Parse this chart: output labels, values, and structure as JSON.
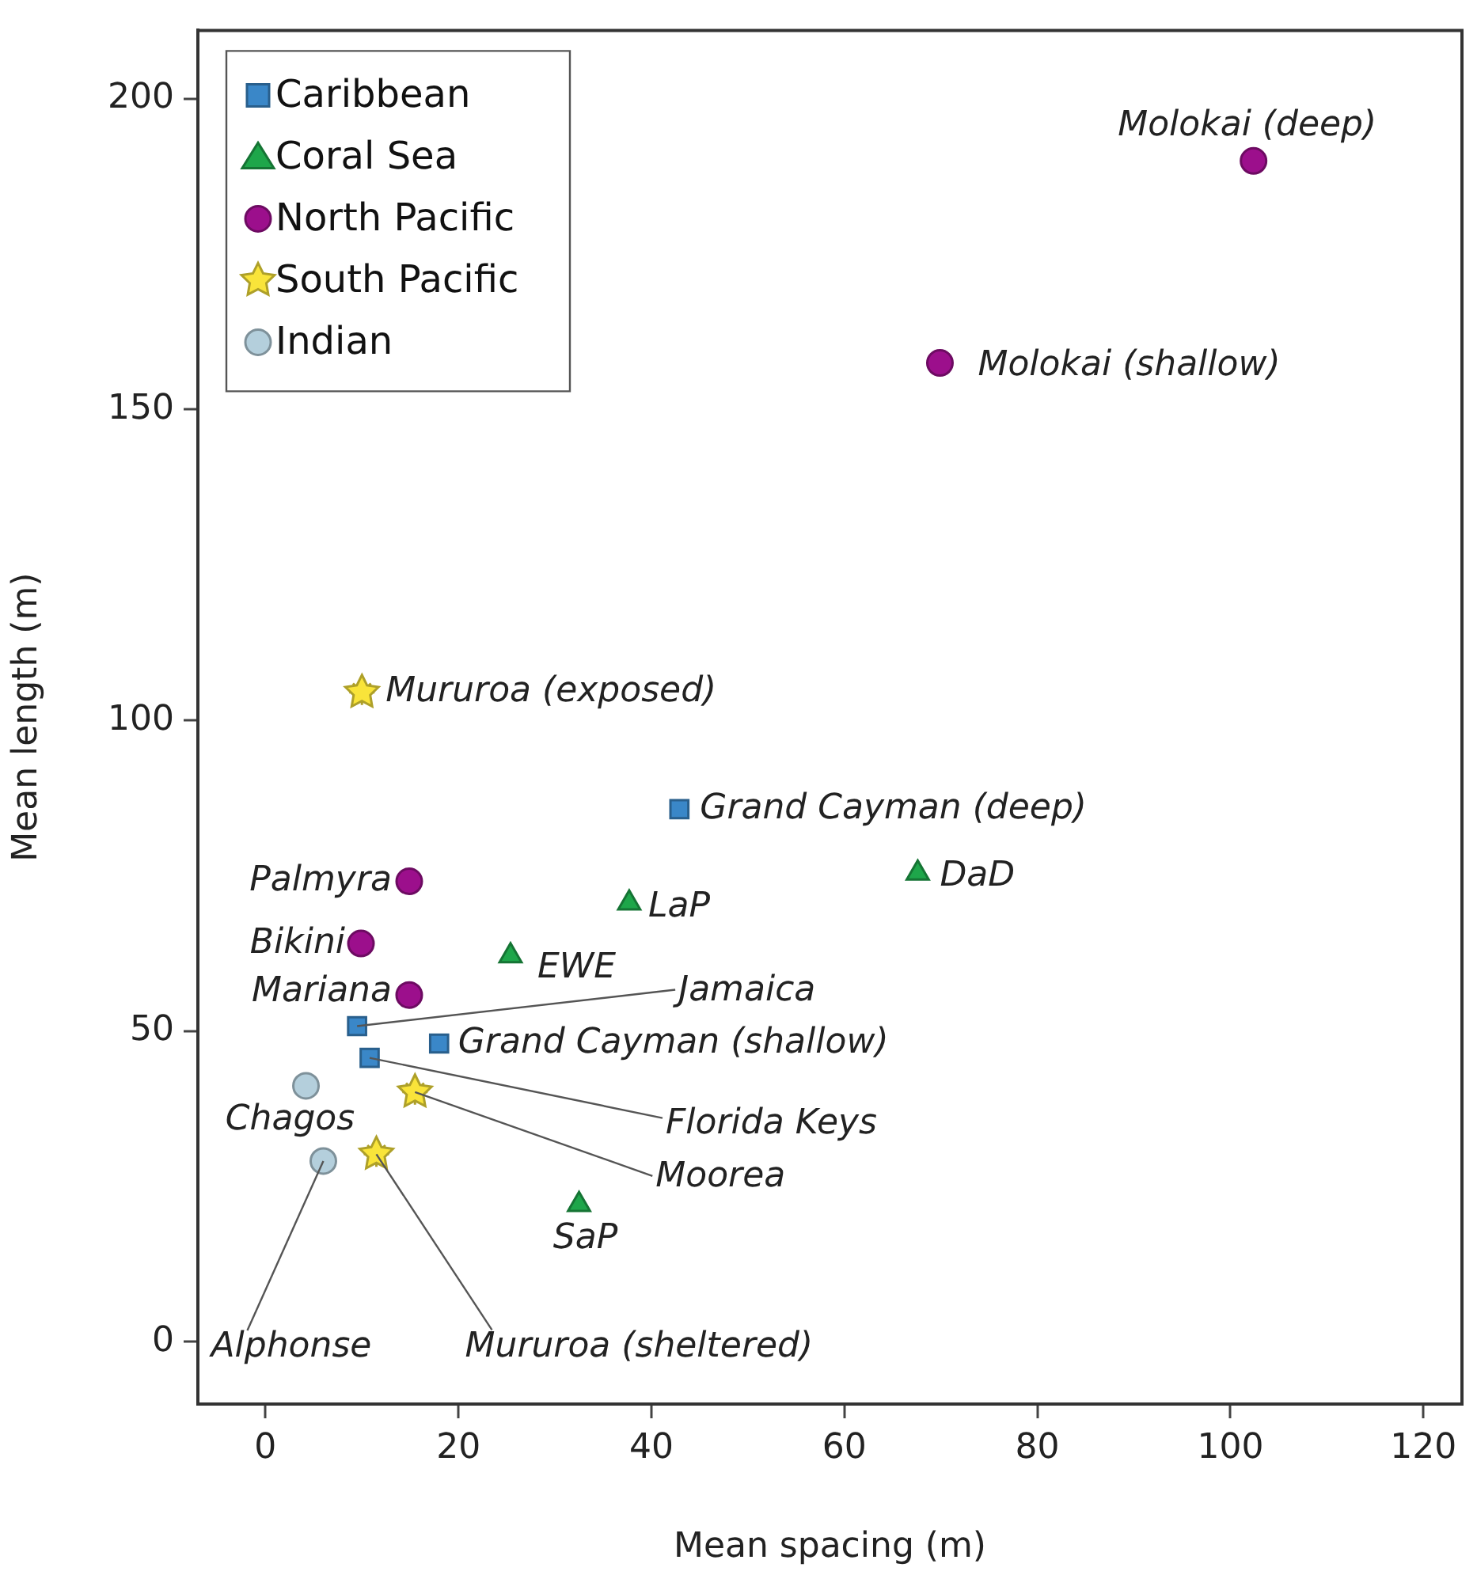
{
  "chart_data": {
    "type": "scatter",
    "xlabel": "Mean spacing (m)",
    "ylabel": "Mean length (m)",
    "xlim": [
      -7,
      124
    ],
    "xticks": [
      0,
      20,
      40,
      60,
      80,
      100,
      120
    ],
    "ylim": [
      -10,
      211
    ],
    "yticks": [
      0,
      50,
      100,
      150,
      200
    ],
    "grid": false,
    "legend": "top left",
    "series": [
      {
        "name": "Caribbean",
        "color": "#3a87c8",
        "marker": "square",
        "x": [
          42.9,
          9.5,
          18.0,
          10.8
        ],
        "values": [
          85.7,
          50.8,
          48.0,
          45.7
        ]
      },
      {
        "name": "Coral Sea",
        "color": "#1ea64a",
        "marker": "triangle",
        "x": [
          67.6,
          37.7,
          25.4,
          32.5
        ],
        "values": [
          75.4,
          70.6,
          62.1,
          22.1
        ]
      },
      {
        "name": "North Pacific",
        "color": "#9c0f8c",
        "marker": "circle",
        "x": [
          102.4,
          69.9,
          14.9,
          9.9,
          14.9
        ],
        "values": [
          190,
          157.5,
          74.1,
          64.1,
          55.8
        ]
      },
      {
        "name": "South Pacific",
        "color": "#f9e43a",
        "marker": "star",
        "x": [
          10.0,
          15.5,
          11.5
        ],
        "values": [
          104.5,
          40.2,
          30.2
        ]
      },
      {
        "name": "Indian",
        "color": "#b4cfdc",
        "marker": "circle",
        "x": [
          4.2,
          6.0
        ],
        "values": [
          41.2,
          29.1
        ]
      }
    ],
    "annotations": [
      {
        "text": "Molokai (deep)",
        "x": 102.4,
        "y": 190
      },
      {
        "text": "Molokai (shallow)",
        "x": 69.9,
        "y": 157.5
      },
      {
        "text": "Mururoa (exposed)",
        "x": 10.0,
        "y": 104.5
      },
      {
        "text": "Grand Cayman (deep)",
        "x": 42.9,
        "y": 85.7
      },
      {
        "text": "DaD",
        "x": 67.6,
        "y": 75.4
      },
      {
        "text": "Palmyra",
        "x": 14.9,
        "y": 74.1
      },
      {
        "text": "LaP",
        "x": 37.7,
        "y": 70.6
      },
      {
        "text": "Bikini",
        "x": 9.9,
        "y": 64.1
      },
      {
        "text": "EWE",
        "x": 25.4,
        "y": 62.1
      },
      {
        "text": "Mariana",
        "x": 14.9,
        "y": 55.8
      },
      {
        "text": "Jamaica",
        "x": 9.5,
        "y": 50.8
      },
      {
        "text": "Grand Cayman (shallow)",
        "x": 18.0,
        "y": 48.0
      },
      {
        "text": "Florida Keys",
        "x": 10.8,
        "y": 45.7
      },
      {
        "text": "Chagos",
        "x": 4.2,
        "y": 41.2
      },
      {
        "text": "Moorea",
        "x": 15.5,
        "y": 40.2
      },
      {
        "text": "Mururoa (sheltered)",
        "x": 11.5,
        "y": 30.2
      },
      {
        "text": "Alphonse",
        "x": 6.0,
        "y": 29.1
      },
      {
        "text": "SaP",
        "x": 32.5,
        "y": 22.1
      }
    ]
  }
}
